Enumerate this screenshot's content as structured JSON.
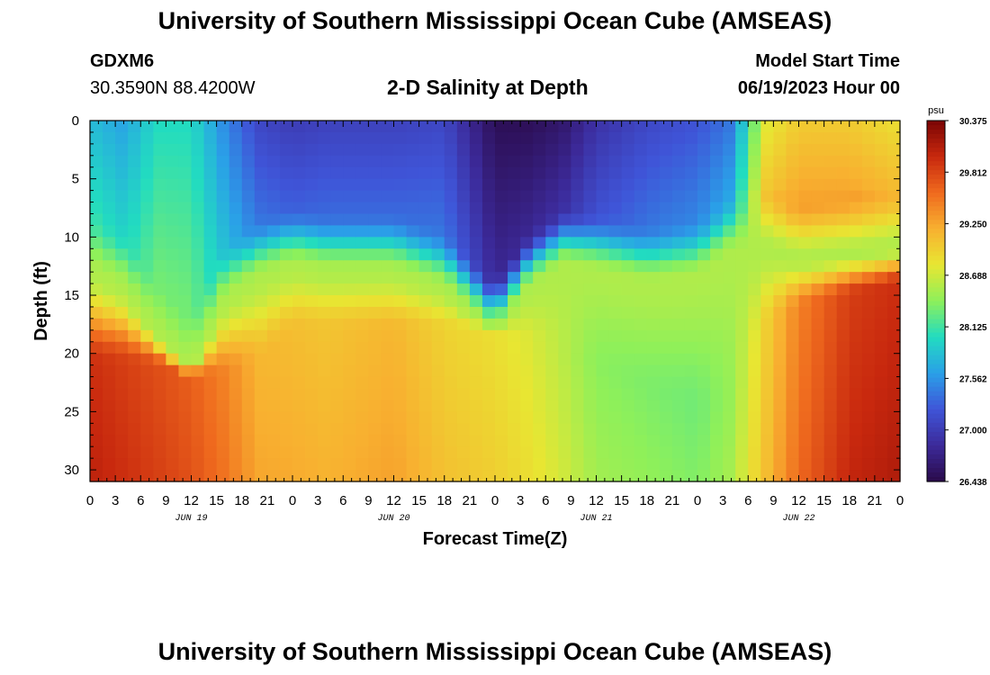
{
  "header": {
    "title": "University of Southern Mississippi Ocean Cube (AMSEAS)",
    "station": "GDXM6",
    "coords": "30.3590N  88.4200W",
    "plot_title": "2-D Salinity at Depth",
    "model_start_label": "Model Start Time",
    "model_start_value": "06/19/2023 Hour 00"
  },
  "footer": {
    "title": "University of Southern Mississippi Ocean Cube (AMSEAS)"
  },
  "chart_data": {
    "type": "heatmap",
    "title": "2-D Salinity at Depth",
    "xlabel": "Forecast Time(Z)",
    "ylabel": "Depth (ft)",
    "x_tick_labels": [
      "0",
      "3",
      "6",
      "9",
      "12",
      "15",
      "18",
      "21",
      "0",
      "3",
      "6",
      "9",
      "12",
      "15",
      "18",
      "21",
      "0",
      "3",
      "6",
      "9",
      "12",
      "15",
      "18",
      "21",
      "0",
      "3",
      "6",
      "9",
      "12",
      "15",
      "18",
      "21",
      "0"
    ],
    "x_range_hours": [
      0,
      96
    ],
    "date_labels": [
      {
        "hour": 12,
        "label": "JUN 19"
      },
      {
        "hour": 36,
        "label": "JUN 20"
      },
      {
        "hour": 60,
        "label": "JUN 21"
      },
      {
        "hour": 84,
        "label": "JUN 22"
      }
    ],
    "y_tick_labels": [
      "0",
      "5",
      "10",
      "15",
      "20",
      "25",
      "30"
    ],
    "y_range_ft": [
      0,
      31
    ],
    "colorbar": {
      "unit": "psu",
      "min": 26.438,
      "max": 30.375,
      "tick_labels": [
        "30.375",
        "29.812",
        "29.250",
        "28.688",
        "28.125",
        "27.562",
        "27.000",
        "26.438"
      ],
      "colors": [
        "#2a0a4a",
        "#3c2a9a",
        "#3f55d8",
        "#2aa0e8",
        "#22dcc0",
        "#8ef05a",
        "#e8e632",
        "#f8b030",
        "#ef6a1e",
        "#c8280e",
        "#7a0404"
      ]
    },
    "profiles": {
      "hours": [
        0,
        4,
        8,
        12,
        16,
        20,
        24,
        28,
        36,
        42,
        48,
        52,
        56,
        60,
        66,
        72,
        76,
        80,
        84,
        90,
        96
      ],
      "surface_psu": [
        27.8,
        27.65,
        28.0,
        28.0,
        27.5,
        27.1,
        27.0,
        27.05,
        27.05,
        27.1,
        26.5,
        26.5,
        26.6,
        26.9,
        27.1,
        27.2,
        27.4,
        28.75,
        29.0,
        29.0,
        28.85
      ],
      "pycnocline_ft": [
        10,
        11.5,
        15.5,
        18.5,
        12.5,
        10.5,
        9.5,
        10,
        10,
        11.5,
        15.5,
        11.5,
        9.5,
        10,
        11,
        10.5,
        8.5,
        8,
        9,
        8.5,
        8
      ],
      "bottom_psu": [
        30.1,
        30.0,
        29.9,
        29.8,
        29.6,
        29.3,
        29.25,
        29.2,
        29.3,
        29.1,
        29.0,
        28.9,
        28.75,
        28.55,
        28.5,
        28.45,
        28.6,
        29.1,
        29.6,
        30.0,
        30.1
      ],
      "mixed_depth_ft": [
        21,
        21,
        21,
        22,
        22,
        21,
        18,
        18,
        18,
        18,
        18,
        19,
        20,
        21,
        23,
        25,
        24,
        18,
        16,
        15,
        14
      ]
    }
  }
}
